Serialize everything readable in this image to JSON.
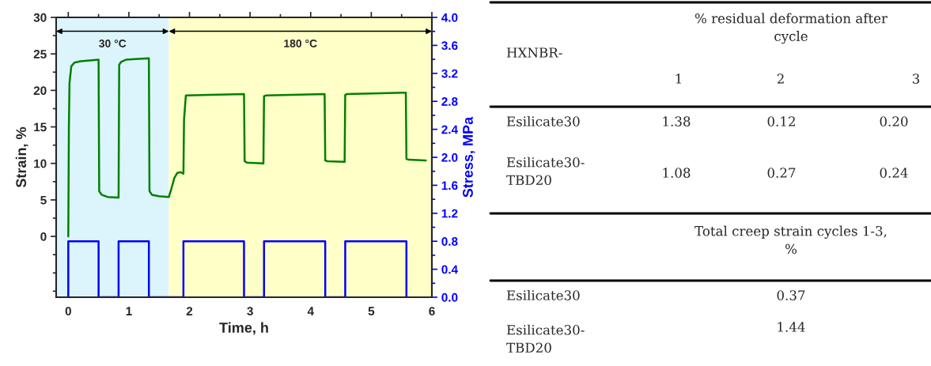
{
  "chart_data": [
    {
      "type": "line",
      "xlabel": "Time, h",
      "ylabel": "Strain, %",
      "y2label": "Stress, MPa",
      "xlim": [
        -0.2,
        6
      ],
      "xticks": [
        0,
        1,
        2,
        3,
        4,
        5,
        6
      ],
      "ylim": [
        -8.33,
        30
      ],
      "yticks": [
        0,
        5,
        10,
        15,
        20,
        25,
        30
      ],
      "y2lim": [
        0,
        4
      ],
      "y2ticks": [
        {
          "value": 0,
          "label": "0.0"
        },
        {
          "value": 0.4,
          "label": "0.4"
        },
        {
          "value": 0.8,
          "label": "0.8"
        },
        {
          "value": 1.2,
          "label": "1.2"
        },
        {
          "value": 1.6,
          "label": "1.6"
        },
        {
          "value": 2.0,
          "label": "2.0"
        },
        {
          "value": 2.4,
          "label": "2.4"
        },
        {
          "value": 2.8,
          "label": "2.8"
        },
        {
          "value": 3.2,
          "label": "3.2"
        },
        {
          "value": 3.6,
          "label": "3.6"
        },
        {
          "value": 4.0,
          "label": "4.0"
        }
      ],
      "grid": false,
      "legend": false,
      "bands": [
        {
          "axis": "x",
          "from": -0.2,
          "to": 1.66,
          "label": "30 °C",
          "color": "#dcf5fc"
        },
        {
          "axis": "x",
          "from": 1.66,
          "to": 6,
          "label": "180 °C",
          "color": "#ffffc8"
        }
      ],
      "series": [
        {
          "color": "#008000",
          "x": [
            0,
            0.01,
            0.02,
            0.05,
            0.1,
            0.2,
            0.5,
            0.51,
            0.55,
            0.65,
            0.83,
            0.84,
            0.87,
            0.95,
            1.1,
            1.33,
            1.34,
            1.38,
            1.5,
            1.66,
            1.7,
            1.75,
            1.8,
            1.85,
            1.9,
            1.91,
            1.94,
            2.9,
            2.91,
            2.95,
            3.22,
            3.23,
            3.26,
            4.23,
            4.24,
            4.28,
            4.56,
            4.57,
            4.6,
            5.57,
            5.58,
            5.62,
            5.9
          ],
          "values": [
            0,
            15,
            21,
            23.3,
            23.8,
            24.0,
            24.2,
            6.2,
            5.7,
            5.4,
            5.3,
            23.5,
            23.9,
            24.2,
            24.3,
            24.4,
            6.2,
            5.7,
            5.5,
            5.4,
            6.5,
            8.0,
            8.7,
            8.8,
            8.6,
            16,
            19.3,
            19.5,
            10.3,
            10.1,
            10.0,
            19.2,
            19.3,
            19.5,
            10.4,
            10.3,
            10.2,
            19.4,
            19.5,
            19.7,
            10.6,
            10.5,
            10.4
          ]
        },
        {
          "color": "#0000ff",
          "axis": "y2",
          "x": [
            0,
            0,
            0.5,
            0.5,
            0.83,
            0.83,
            1.33,
            1.33,
            1.9,
            1.9,
            2.9,
            2.9,
            3.23,
            3.23,
            4.24,
            4.24,
            4.57,
            4.57,
            5.58,
            5.58
          ],
          "values": [
            0,
            0.8,
            0.8,
            0,
            0,
            0.8,
            0.8,
            0,
            0,
            0.8,
            0.8,
            0,
            0,
            0.8,
            0.8,
            0,
            0,
            0.8,
            0.8,
            0
          ]
        }
      ]
    },
    {
      "type": "other",
      "annotations": [
        "HXNBR-",
        "% residual deformation after\ncycle",
        "1",
        "2",
        "3",
        "Esilicate30",
        "1.38",
        "0.12",
        "0.20",
        "Esilicate30-\nTBD20",
        "1.08",
        "0.27",
        "0.24",
        "Total creep strain cycles 1-3,\n%",
        "Esilicate30",
        "0.37",
        "Esilicate30-\nTBD20",
        "1.44"
      ]
    }
  ]
}
